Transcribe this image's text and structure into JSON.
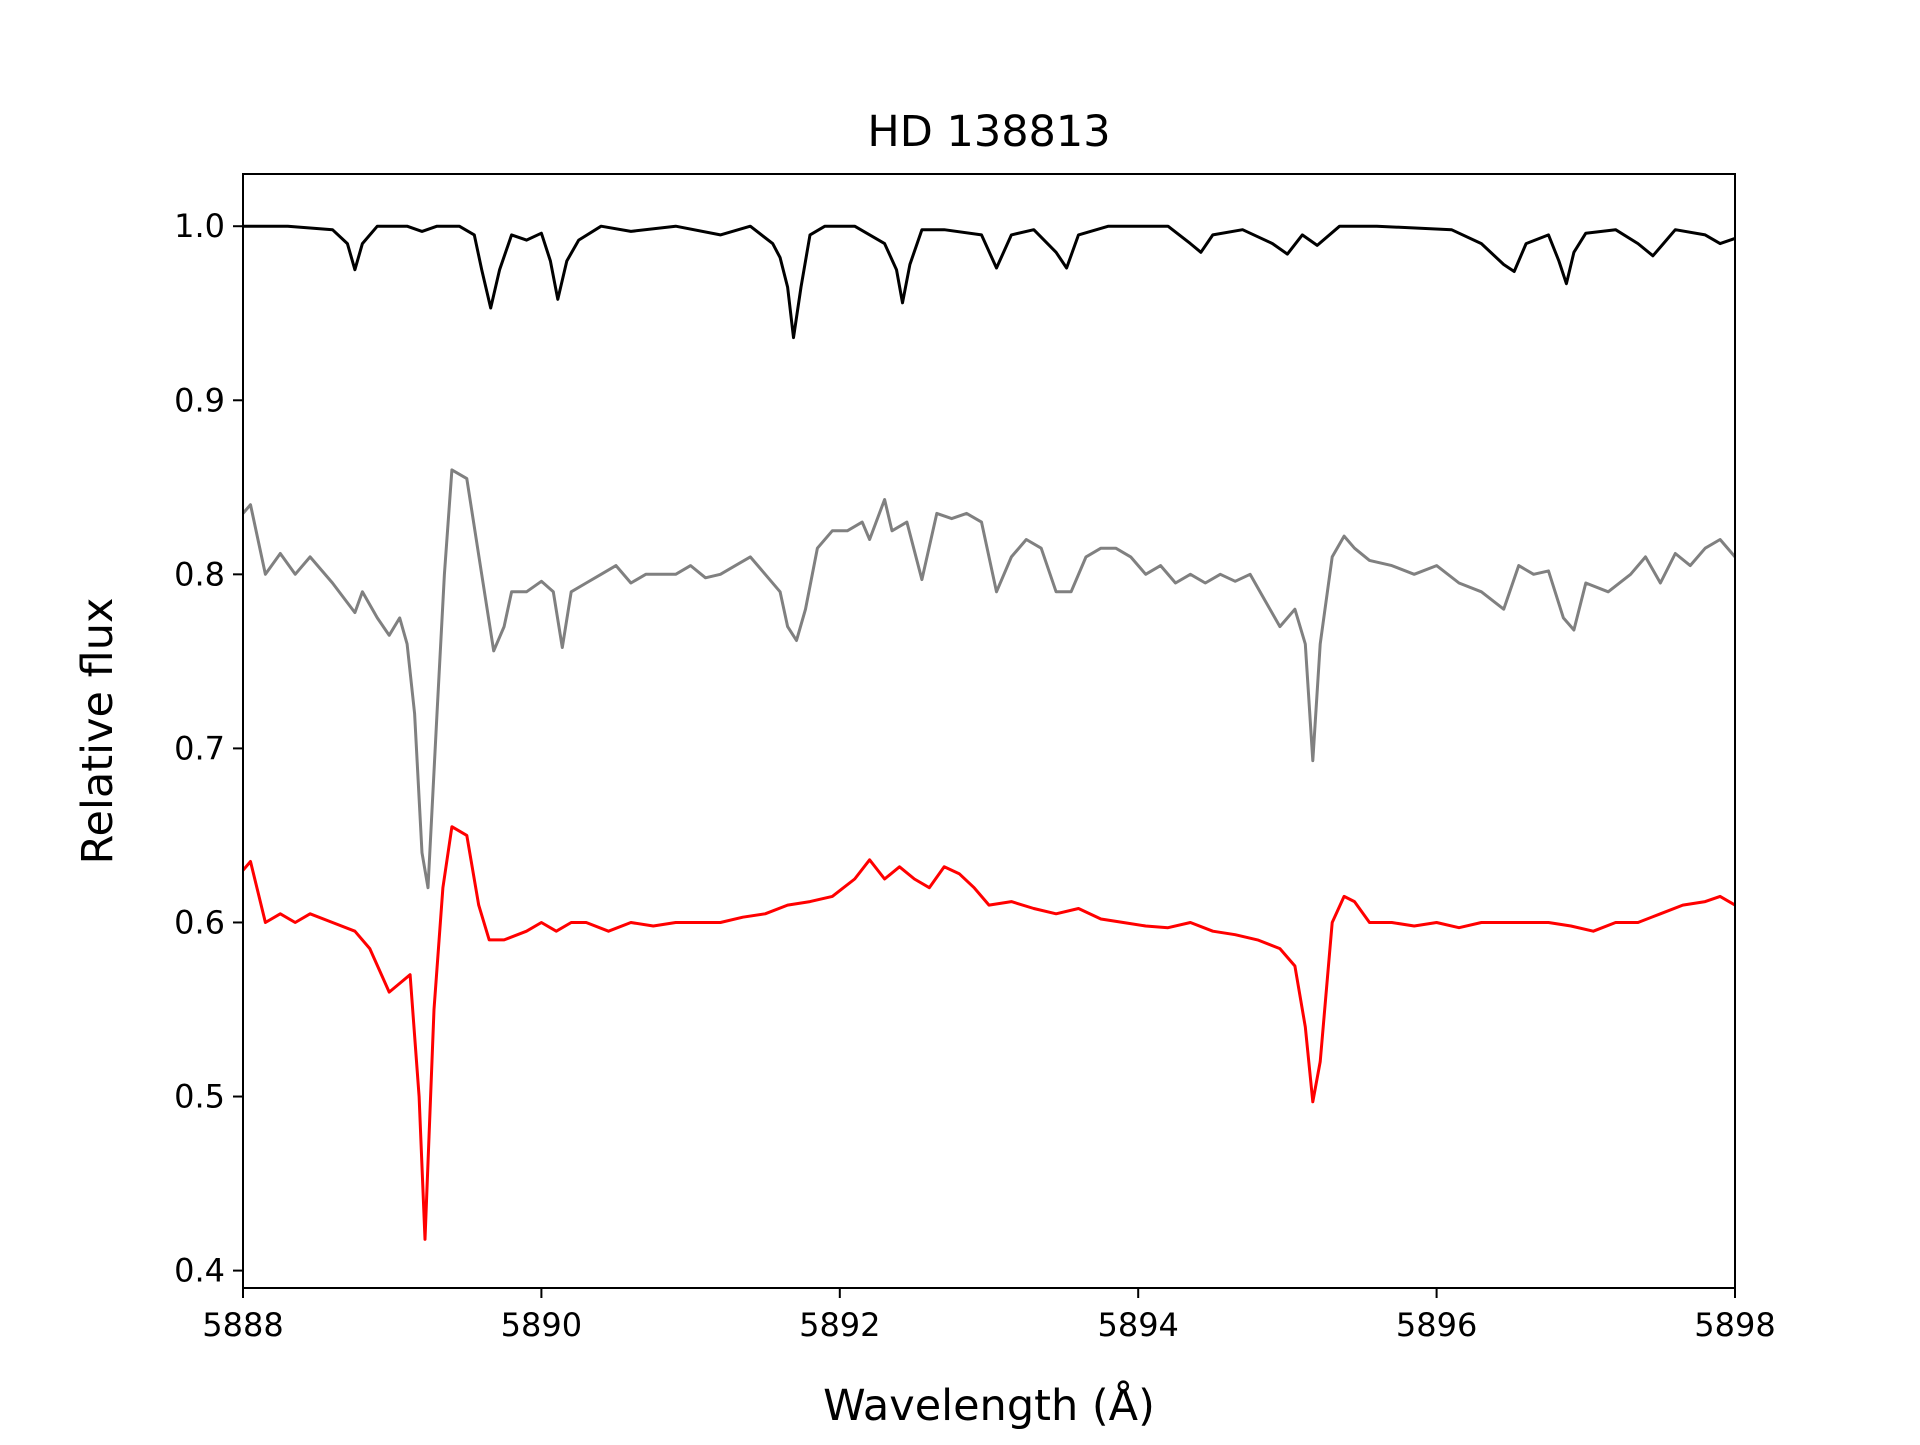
{
  "chart_data": {
    "type": "line",
    "title": "HD 138813",
    "xlabel": "Wavelength (Å)",
    "ylabel": "Relative flux",
    "xlim": [
      5888,
      5898
    ],
    "ylim": [
      0.39,
      1.03
    ],
    "xticks": [
      "5888",
      "5890",
      "5892",
      "5894",
      "5896",
      "5898"
    ],
    "yticks": [
      "0.4",
      "0.5",
      "0.6",
      "0.7",
      "0.8",
      "0.9",
      "1.0"
    ],
    "grid": false,
    "legend": "none",
    "colors": {
      "series_1": "#000000",
      "series_2": "#808080",
      "series_3": "#ff0000"
    },
    "series": [
      {
        "color": "#000000",
        "x": [
          5888.0,
          5888.3,
          5888.6,
          5888.7,
          5888.75,
          5888.8,
          5888.9,
          5889.1,
          5889.2,
          5889.3,
          5889.45,
          5889.55,
          5889.6,
          5889.66,
          5889.72,
          5889.8,
          5889.9,
          5890.0,
          5890.06,
          5890.11,
          5890.17,
          5890.25,
          5890.4,
          5890.6,
          5890.9,
          5891.2,
          5891.4,
          5891.55,
          5891.6,
          5891.65,
          5891.69,
          5891.74,
          5891.8,
          5891.9,
          5892.1,
          5892.3,
          5892.38,
          5892.42,
          5892.47,
          5892.55,
          5892.7,
          5892.95,
          5893.05,
          5893.15,
          5893.3,
          5893.45,
          5893.52,
          5893.6,
          5893.8,
          5894.2,
          5894.35,
          5894.42,
          5894.5,
          5894.7,
          5894.9,
          5895.0,
          5895.1,
          5895.2,
          5895.35,
          5895.6,
          5896.1,
          5896.3,
          5896.45,
          5896.52,
          5896.6,
          5896.75,
          5896.82,
          5896.87,
          5896.92,
          5897.0,
          5897.2,
          5897.35,
          5897.45,
          5897.52,
          5897.6,
          5897.8,
          5897.9,
          5898.0
        ],
        "y": [
          1.0,
          1.0,
          0.998,
          0.99,
          0.975,
          0.99,
          1.0,
          1.0,
          0.997,
          1.0,
          1.0,
          0.995,
          0.975,
          0.953,
          0.975,
          0.995,
          0.992,
          0.996,
          0.98,
          0.958,
          0.98,
          0.992,
          1.0,
          0.997,
          1.0,
          0.995,
          1.0,
          0.99,
          0.982,
          0.965,
          0.936,
          0.965,
          0.995,
          1.0,
          1.0,
          0.99,
          0.975,
          0.956,
          0.978,
          0.998,
          0.998,
          0.995,
          0.976,
          0.995,
          0.998,
          0.985,
          0.976,
          0.995,
          1.0,
          1.0,
          0.99,
          0.985,
          0.995,
          0.998,
          0.99,
          0.984,
          0.995,
          0.989,
          1.0,
          1.0,
          0.998,
          0.99,
          0.978,
          0.974,
          0.99,
          0.995,
          0.98,
          0.967,
          0.985,
          0.996,
          0.998,
          0.99,
          0.983,
          0.99,
          0.998,
          0.995,
          0.99,
          0.993
        ]
      },
      {
        "color": "#808080",
        "x": [
          5888.0,
          5888.05,
          5888.15,
          5888.25,
          5888.35,
          5888.45,
          5888.6,
          5888.75,
          5888.8,
          5888.9,
          5888.98,
          5889.05,
          5889.1,
          5889.15,
          5889.2,
          5889.24,
          5889.3,
          5889.35,
          5889.4,
          5889.5,
          5889.6,
          5889.68,
          5889.75,
          5889.8,
          5889.9,
          5890.0,
          5890.08,
          5890.14,
          5890.2,
          5890.3,
          5890.4,
          5890.5,
          5890.6,
          5890.7,
          5890.8,
          5890.9,
          5891.0,
          5891.1,
          5891.2,
          5891.3,
          5891.4,
          5891.5,
          5891.6,
          5891.65,
          5891.71,
          5891.77,
          5891.85,
          5891.95,
          5892.05,
          5892.15,
          5892.2,
          5892.3,
          5892.35,
          5892.45,
          5892.55,
          5892.65,
          5892.75,
          5892.85,
          5892.95,
          5893.05,
          5893.15,
          5893.25,
          5893.35,
          5893.45,
          5893.55,
          5893.65,
          5893.75,
          5893.85,
          5893.95,
          5894.05,
          5894.15,
          5894.25,
          5894.35,
          5894.45,
          5894.55,
          5894.65,
          5894.75,
          5894.85,
          5894.95,
          5895.05,
          5895.12,
          5895.17,
          5895.22,
          5895.3,
          5895.38,
          5895.45,
          5895.55,
          5895.7,
          5895.85,
          5896.0,
          5896.15,
          5896.3,
          5896.45,
          5896.55,
          5896.65,
          5896.75,
          5896.85,
          5896.92,
          5897.0,
          5897.15,
          5897.3,
          5897.4,
          5897.5,
          5897.6,
          5897.7,
          5897.8,
          5897.9,
          5898.0
        ],
        "y": [
          0.835,
          0.84,
          0.8,
          0.812,
          0.8,
          0.81,
          0.795,
          0.778,
          0.79,
          0.775,
          0.765,
          0.775,
          0.76,
          0.72,
          0.64,
          0.62,
          0.72,
          0.8,
          0.86,
          0.855,
          0.8,
          0.756,
          0.77,
          0.79,
          0.79,
          0.796,
          0.79,
          0.758,
          0.79,
          0.795,
          0.8,
          0.805,
          0.795,
          0.8,
          0.8,
          0.8,
          0.805,
          0.798,
          0.8,
          0.805,
          0.81,
          0.8,
          0.79,
          0.77,
          0.762,
          0.78,
          0.815,
          0.825,
          0.825,
          0.83,
          0.82,
          0.843,
          0.825,
          0.83,
          0.797,
          0.835,
          0.832,
          0.835,
          0.83,
          0.79,
          0.81,
          0.82,
          0.815,
          0.79,
          0.79,
          0.81,
          0.815,
          0.815,
          0.81,
          0.8,
          0.805,
          0.795,
          0.8,
          0.795,
          0.8,
          0.796,
          0.8,
          0.785,
          0.77,
          0.78,
          0.76,
          0.693,
          0.76,
          0.81,
          0.822,
          0.815,
          0.808,
          0.805,
          0.8,
          0.805,
          0.795,
          0.79,
          0.78,
          0.805,
          0.8,
          0.802,
          0.775,
          0.768,
          0.795,
          0.79,
          0.8,
          0.81,
          0.795,
          0.812,
          0.805,
          0.815,
          0.82,
          0.81
        ],
        "display_offset": 0
      },
      {
        "color": "#ff0000",
        "x": [
          5888.0,
          5888.05,
          5888.15,
          5888.25,
          5888.35,
          5888.45,
          5888.6,
          5888.75,
          5888.85,
          5888.98,
          5889.05,
          5889.12,
          5889.18,
          5889.22,
          5889.28,
          5889.34,
          5889.4,
          5889.5,
          5889.58,
          5889.65,
          5889.75,
          5889.9,
          5890.0,
          5890.1,
          5890.2,
          5890.3,
          5890.45,
          5890.6,
          5890.75,
          5890.9,
          5891.05,
          5891.2,
          5891.35,
          5891.5,
          5891.65,
          5891.8,
          5891.95,
          5892.1,
          5892.2,
          5892.3,
          5892.4,
          5892.5,
          5892.6,
          5892.7,
          5892.8,
          5892.9,
          5893.0,
          5893.15,
          5893.3,
          5893.45,
          5893.6,
          5893.75,
          5893.9,
          5894.05,
          5894.2,
          5894.35,
          5894.5,
          5894.65,
          5894.8,
          5894.95,
          5895.05,
          5895.12,
          5895.17,
          5895.22,
          5895.3,
          5895.38,
          5895.45,
          5895.55,
          5895.7,
          5895.85,
          5896.0,
          5896.15,
          5896.3,
          5896.45,
          5896.6,
          5896.75,
          5896.9,
          5897.05,
          5897.2,
          5897.35,
          5897.5,
          5897.65,
          5897.8,
          5897.9,
          5898.0
        ],
        "y": [
          0.63,
          0.635,
          0.6,
          0.605,
          0.6,
          0.605,
          0.6,
          0.595,
          0.585,
          0.56,
          0.565,
          0.57,
          0.5,
          0.418,
          0.55,
          0.62,
          0.655,
          0.65,
          0.61,
          0.59,
          0.59,
          0.595,
          0.6,
          0.595,
          0.6,
          0.6,
          0.595,
          0.6,
          0.598,
          0.6,
          0.6,
          0.6,
          0.603,
          0.605,
          0.61,
          0.612,
          0.615,
          0.625,
          0.636,
          0.625,
          0.632,
          0.625,
          0.62,
          0.632,
          0.628,
          0.62,
          0.61,
          0.612,
          0.608,
          0.605,
          0.608,
          0.602,
          0.6,
          0.598,
          0.597,
          0.6,
          0.595,
          0.593,
          0.59,
          0.585,
          0.575,
          0.54,
          0.497,
          0.52,
          0.6,
          0.615,
          0.612,
          0.6,
          0.6,
          0.598,
          0.6,
          0.597,
          0.6,
          0.6,
          0.6,
          0.6,
          0.598,
          0.595,
          0.6,
          0.6,
          0.605,
          0.61,
          0.612,
          0.615,
          0.61
        ]
      }
    ]
  }
}
